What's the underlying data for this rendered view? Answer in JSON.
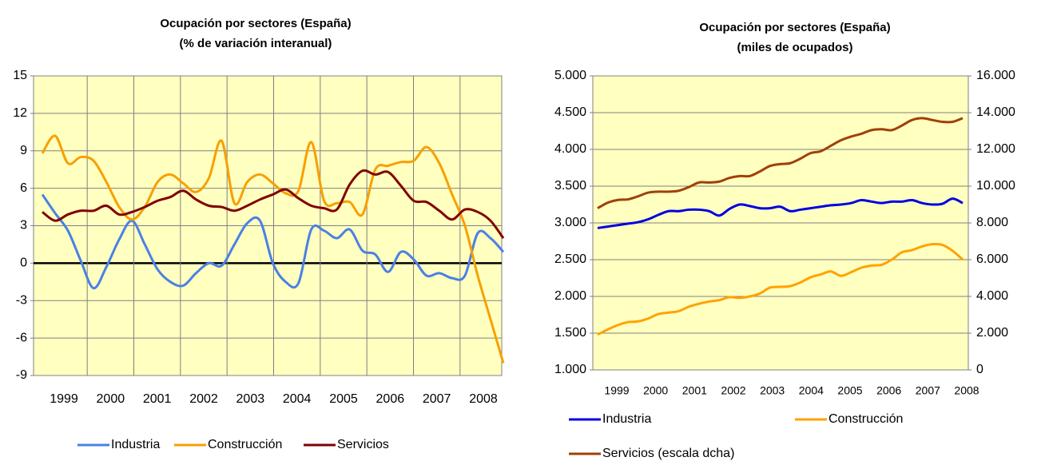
{
  "chart_data": [
    {
      "type": "line",
      "title": "Ocupación por sectores (España)",
      "subtitle": "(% de variación interanual)",
      "categories": [
        null,
        null,
        "1999",
        null,
        null,
        "2000",
        null,
        null,
        null,
        "2001",
        null,
        null,
        null,
        "2002",
        null,
        null,
        "2003",
        null,
        null,
        null,
        "2004",
        null,
        null,
        null,
        "2005",
        null,
        null,
        "2006",
        null,
        null,
        null,
        "2007",
        null,
        null,
        "2008",
        null,
        null
      ],
      "series": [
        {
          "name": "Industria",
          "color": "#4a80e6",
          "values": [
            5.5,
            4.0,
            2.6,
            0.2,
            -2.0,
            -0.3,
            1.9,
            3.4,
            1.5,
            -0.5,
            -1.5,
            -1.8,
            -0.8,
            0,
            -0.2,
            1.5,
            3.2,
            3.4,
            0,
            -1.5,
            -1.6,
            2.7,
            2.6,
            2.0,
            2.7,
            1.0,
            0.7,
            -0.7,
            0.9,
            0.3,
            -1.0,
            -0.8,
            -1.2,
            -1.0,
            2.4,
            2.0,
            0.9
          ]
        },
        {
          "name": "Construcción",
          "color": "#f7a000",
          "values": [
            8.8,
            10.2,
            8.0,
            8.5,
            8.2,
            6.5,
            4.5,
            3.5,
            4.5,
            6.5,
            7.1,
            6.4,
            5.7,
            6.8,
            9.8,
            4.8,
            6.5,
            7.1,
            6.4,
            5.6,
            5.8,
            9.7,
            5.0,
            4.8,
            4.9,
            3.9,
            7.5,
            7.8,
            8.1,
            8.2,
            9.3,
            8.0,
            5.5,
            3.0,
            -1.0,
            -4.5,
            -8.0
          ]
        },
        {
          "name": "Servicios",
          "color": "#800000",
          "values": [
            4.1,
            3.4,
            3.9,
            4.2,
            4.2,
            4.6,
            3.9,
            4.1,
            4.5,
            5.0,
            5.3,
            5.8,
            5.1,
            4.6,
            4.5,
            4.2,
            4.6,
            5.1,
            5.5,
            5.9,
            5.2,
            4.6,
            4.4,
            4.3,
            6.3,
            7.4,
            7.1,
            7.3,
            6.2,
            5.0,
            4.9,
            4.2,
            3.5,
            4.3,
            4.1,
            3.4,
            2.0
          ]
        }
      ],
      "ylim": [
        -9,
        15
      ],
      "yticks": [
        15,
        12,
        9,
        6,
        3,
        0,
        -3,
        -6,
        -9
      ],
      "grid": true,
      "legend": "bottom"
    },
    {
      "type": "line",
      "title": "Ocupación por sectores (España)",
      "subtitle": "(miles de ocupados)",
      "categories": [
        null,
        null,
        "1999",
        null,
        null,
        null,
        "2000",
        null,
        null,
        null,
        "2001",
        null,
        null,
        null,
        "2002",
        null,
        null,
        null,
        "2003",
        null,
        null,
        null,
        "2004",
        null,
        null,
        null,
        "2005",
        null,
        null,
        null,
        "2006",
        null,
        null,
        "2007",
        null,
        null,
        "2008"
      ],
      "series": [
        {
          "name": "Industria",
          "color": "#0000e0",
          "values": [
            2930,
            2950,
            2970,
            2990,
            3010,
            3050,
            3110,
            3160,
            3160,
            3180,
            3180,
            3160,
            3100,
            3190,
            3250,
            3230,
            3200,
            3200,
            3220,
            3160,
            3180,
            3200,
            3220,
            3240,
            3250,
            3270,
            3310,
            3290,
            3270,
            3290,
            3290,
            3310,
            3270,
            3250,
            3260,
            3330,
            3270
          ]
        },
        {
          "name": "Construcción",
          "color": "#ffa200",
          "values": [
            1480,
            1550,
            1610,
            1650,
            1660,
            1700,
            1760,
            1780,
            1800,
            1860,
            1900,
            1930,
            1950,
            1990,
            1980,
            2000,
            2040,
            2120,
            2130,
            2140,
            2190,
            2260,
            2300,
            2340,
            2280,
            2330,
            2390,
            2420,
            2430,
            2500,
            2600,
            2630,
            2680,
            2710,
            2700,
            2620,
            2500
          ]
        },
        {
          "name": "Servicios (escala dcha)",
          "color": "#a0400a",
          "axis": "y2",
          "values": [
            8800,
            9100,
            9250,
            9280,
            9450,
            9650,
            9700,
            9700,
            9750,
            9950,
            10200,
            10200,
            10250,
            10450,
            10550,
            10550,
            10800,
            11100,
            11200,
            11250,
            11500,
            11800,
            11900,
            12200,
            12500,
            12700,
            12850,
            13050,
            13100,
            13050,
            13300,
            13600,
            13700,
            13600,
            13500,
            13500,
            13700
          ]
        }
      ],
      "ylim": [
        1000,
        5000
      ],
      "yticks": [
        {
          "value": 5000,
          "label": "5.000"
        },
        {
          "value": 4500,
          "label": "4.500"
        },
        {
          "value": 4000,
          "label": "4.000"
        },
        {
          "value": 3500,
          "label": "3.500"
        },
        {
          "value": 3000,
          "label": "3.000"
        },
        {
          "value": 2500,
          "label": "2.500"
        },
        {
          "value": 2000,
          "label": "2.000"
        },
        {
          "value": 1500,
          "label": "1.500"
        },
        {
          "value": 1000,
          "label": "1.000"
        }
      ],
      "y2lim": [
        0,
        16000
      ],
      "y2ticks": [
        {
          "value": 16000,
          "label": "16.000"
        },
        {
          "value": 14000,
          "label": "14.000"
        },
        {
          "value": 12000,
          "label": "12.000"
        },
        {
          "value": 10000,
          "label": "10.000"
        },
        {
          "value": 8000,
          "label": "8.000"
        },
        {
          "value": 6000,
          "label": "6.000"
        },
        {
          "value": 4000,
          "label": "4.000"
        },
        {
          "value": 2000,
          "label": "2.000"
        },
        0
      ],
      "grid": true,
      "legend": "bottom"
    }
  ]
}
